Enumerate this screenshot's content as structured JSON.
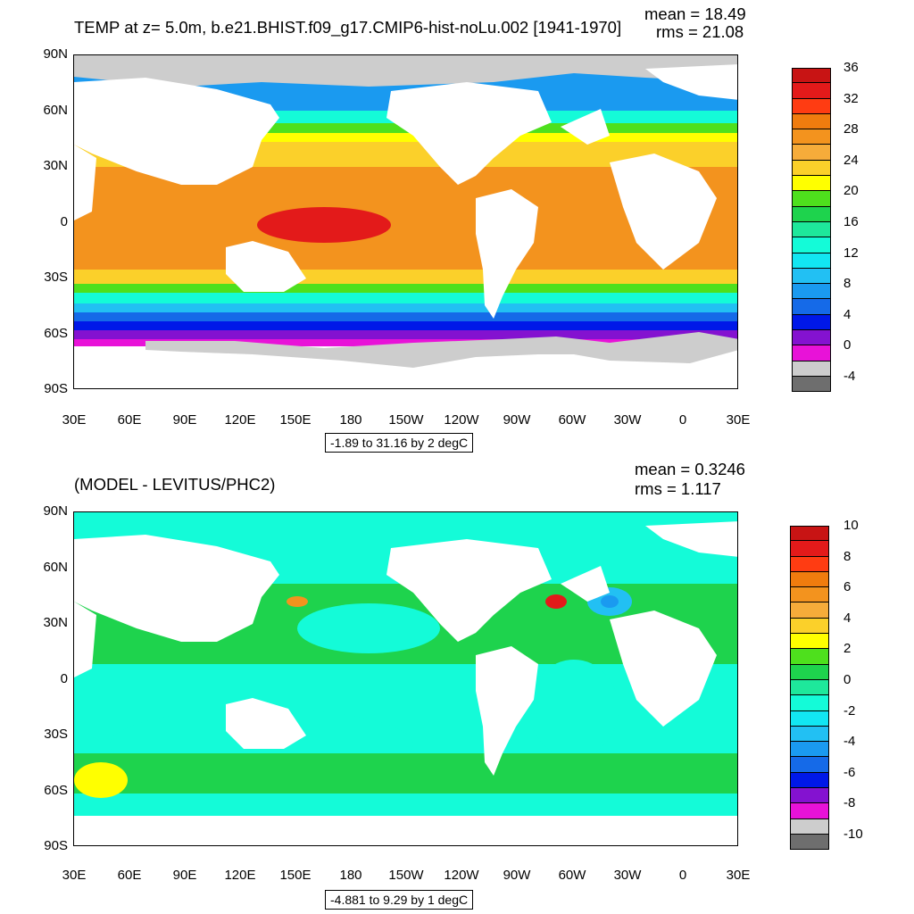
{
  "top": {
    "title": "TEMP at z=   5.0m, b.e21.BHIST.f09_g17.CMIP6-hist-noLu.002 [1941-1970]",
    "mean": "mean = 18.49",
    "rms": "rms = 21.08",
    "range": "-1.89 to 31.16 by 2 degC",
    "colorbar": {
      "labels": [
        "36",
        "32",
        "28",
        "24",
        "20",
        "16",
        "12",
        "8",
        "4",
        "0",
        "-4"
      ],
      "colors": [
        "#c81414",
        "#e31a1a",
        "#ff3c12",
        "#f07c0e",
        "#f3931e",
        "#f6ac3a",
        "#fbd02a",
        "#ffff00",
        "#4ee01d",
        "#1ed34d",
        "#1ee89b",
        "#14fbd8",
        "#12e6f2",
        "#22c0f3",
        "#1a9af0",
        "#156ae8",
        "#0018e8",
        "#8412d0",
        "#e812d8",
        "#cdcdcd",
        "#6e6e6e"
      ]
    }
  },
  "bottom": {
    "title": "(MODEL - LEVITUS/PHC2)",
    "mean": "mean = 0.3246",
    "rms": "rms = 1.117",
    "range": "-4.881 to 9.29 by 1 degC",
    "colorbar": {
      "labels": [
        "10",
        "8",
        "6",
        "4",
        "2",
        "0",
        "-2",
        "-4",
        "-6",
        "-8",
        "-10"
      ],
      "colors": [
        "#c81414",
        "#e31a1a",
        "#ff3c12",
        "#f07c0e",
        "#f3931e",
        "#f6ac3a",
        "#fbd02a",
        "#ffff00",
        "#4ee01d",
        "#1ed34d",
        "#1ee89b",
        "#14fbd8",
        "#12e6f2",
        "#22c0f3",
        "#1a9af0",
        "#156ae8",
        "#0018e8",
        "#8412d0",
        "#e812d8",
        "#cdcdcd",
        "#6e6e6e"
      ]
    }
  },
  "axes": {
    "lat_labels": [
      "90N",
      "60N",
      "30N",
      "0",
      "30S",
      "60S",
      "90S"
    ],
    "lon_labels": [
      "30E",
      "60E",
      "90E",
      "120E",
      "150E",
      "180",
      "150W",
      "120W",
      "90W",
      "60W",
      "30W",
      "0",
      "30E"
    ]
  }
}
